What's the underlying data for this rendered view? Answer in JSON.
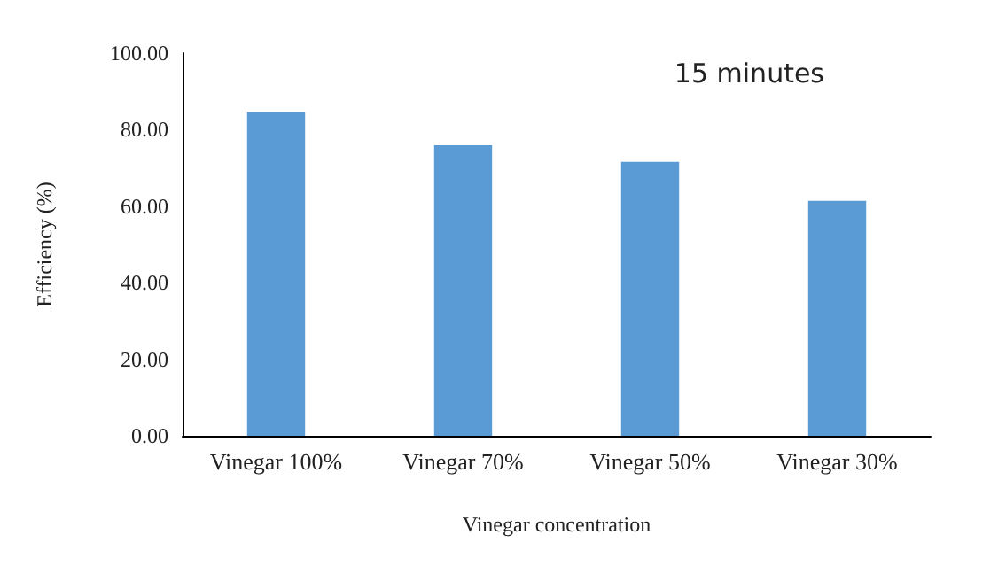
{
  "chart_data": {
    "type": "bar",
    "xlabel": "Vinegar concentration",
    "ylabel": "Efficiency (%)",
    "annotations": [
      "15 minutes"
    ],
    "categories": [
      "Vinegar 100%",
      "Vinegar 70%",
      "Vinegar 50%",
      "Vinegar 30%"
    ],
    "values": [
      84.6,
      75.9,
      71.6,
      61.4
    ],
    "color": "#5b9bd5",
    "ylim": [
      0,
      100
    ],
    "yticks": [
      {
        "value": 0,
        "label": "0.00"
      },
      {
        "value": 20,
        "label": "20.00"
      },
      {
        "value": 40,
        "label": "40.00"
      },
      {
        "value": 60,
        "label": "60.00"
      },
      {
        "value": 80,
        "label": "80.00"
      },
      {
        "value": 100,
        "label": "100.00"
      }
    ],
    "grid": false
  }
}
